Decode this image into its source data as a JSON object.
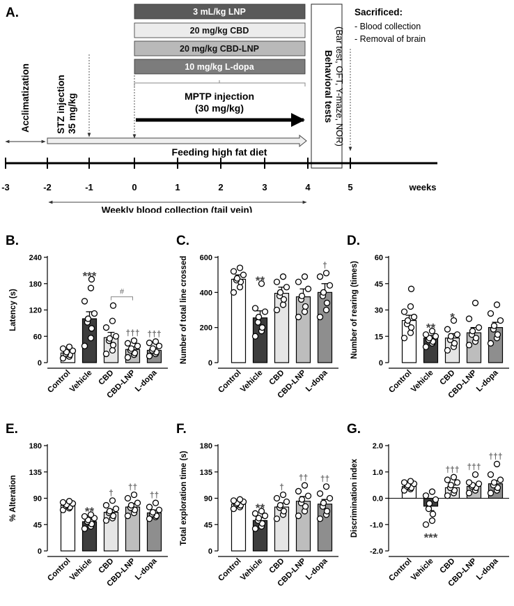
{
  "timeline": {
    "panel_label": "A.",
    "treatments": [
      "3 mL/kg LNP",
      "20 mg/kg CBD",
      "20 mg/kg CBD-LNP",
      "10 mg/kg L-dopa"
    ],
    "treatment_colors": [
      "#5a5a5a",
      "#ececec",
      "#b9b9b9",
      "#7c7c7c"
    ],
    "acclimatization": "Acclimatization",
    "stz_line1": "STZ injection",
    "stz_line2": "35 mg/kg",
    "mptp_line1": "MPTP injection",
    "mptp_line2": "(30 mg/kg)",
    "feeding": "Feeding high fat diet",
    "behavioral_line1": "Behavioral tests",
    "behavioral_line2": "(Bar test, OFT, Y-maze, NOR)",
    "sacrificed_title": "Sacrificed:",
    "sacrificed_items": [
      "- Blood collection",
      "- Removal of brain"
    ],
    "ticks": [
      "-3",
      "-2",
      "-1",
      "0",
      "1",
      "2",
      "3",
      "4",
      "5"
    ],
    "weeks_label": "weeks",
    "blood_collection": "Weekly blood collection (tail vein)"
  },
  "chart_data": [
    {
      "panel": "B.",
      "type": "bar",
      "ylabel": "Latency (s)",
      "categories": [
        "Control",
        "Vehicle",
        "CBD",
        "CBD-LNP",
        "L-dopa"
      ],
      "values": [
        22,
        100,
        57,
        30,
        28
      ],
      "sem": [
        5,
        16,
        12,
        6,
        5
      ],
      "ylim": [
        0,
        240
      ],
      "yticks": [
        0,
        60,
        120,
        180,
        240
      ],
      "points": [
        [
          10,
          14,
          18,
          20,
          24,
          27,
          32,
          36
        ],
        [
          38,
          56,
          78,
          92,
          100,
          112,
          140,
          170,
          190
        ],
        [
          20,
          28,
          40,
          50,
          55,
          60,
          80,
          95,
          130
        ],
        [
          12,
          18,
          22,
          28,
          32,
          38,
          44,
          50
        ],
        [
          15,
          20,
          24,
          28,
          32,
          38,
          45,
          48
        ]
      ],
      "bar_colors": [
        "#ffffff",
        "#3d3d3d",
        "#e5e5e5",
        "#bdbdbd",
        "#8e8e8e"
      ],
      "marks": [
        "",
        "***",
        "",
        "†††",
        "†††"
      ],
      "bracket": {
        "from": 2,
        "to": 3,
        "label": "#",
        "y": 150
      }
    },
    {
      "panel": "C.",
      "type": "bar",
      "ylabel": "Number of total line crossed",
      "categories": [
        "Control",
        "Vehicle",
        "CBD",
        "CBD-LNP",
        "L-dopa"
      ],
      "values": [
        475,
        255,
        395,
        375,
        400
      ],
      "sem": [
        25,
        40,
        35,
        45,
        50
      ],
      "ylim": [
        0,
        600
      ],
      "yticks": [
        0,
        200,
        400,
        600
      ],
      "points": [
        [
          400,
          430,
          460,
          470,
          480,
          500,
          520,
          540
        ],
        [
          150,
          180,
          200,
          230,
          260,
          290,
          310,
          450
        ],
        [
          300,
          330,
          360,
          380,
          400,
          430,
          460,
          490
        ],
        [
          260,
          290,
          320,
          360,
          380,
          420,
          460,
          490
        ],
        [
          260,
          300,
          340,
          380,
          400,
          440,
          490,
          510
        ]
      ],
      "bar_colors": [
        "#ffffff",
        "#3d3d3d",
        "#e5e5e5",
        "#bdbdbd",
        "#8e8e8e"
      ],
      "marks": [
        "",
        "**",
        "",
        "",
        "†"
      ]
    },
    {
      "panel": "D.",
      "type": "bar",
      "ylabel": "Number of rearing (times)",
      "categories": [
        "Control",
        "Vehicle",
        "CBD",
        "CBD-LNP",
        "L-dopa"
      ],
      "values": [
        24,
        14,
        14,
        17,
        20
      ],
      "sem": [
        3,
        1.5,
        2.5,
        3,
        3
      ],
      "ylim": [
        0,
        60
      ],
      "yticks": [
        0,
        15,
        30,
        45,
        60
      ],
      "points": [
        [
          14,
          17,
          20,
          22,
          24,
          26,
          29,
          32,
          42
        ],
        [
          9,
          11,
          12,
          13,
          14,
          15,
          16,
          18
        ],
        [
          7,
          9,
          11,
          13,
          15,
          16,
          19,
          24
        ],
        [
          10,
          12,
          14,
          16,
          18,
          20,
          25,
          34
        ],
        [
          11,
          14,
          16,
          19,
          21,
          24,
          28,
          33
        ]
      ],
      "bar_colors": [
        "#ffffff",
        "#3d3d3d",
        "#e5e5e5",
        "#bdbdbd",
        "#8e8e8e"
      ],
      "marks": [
        "",
        "**",
        "*",
        "",
        ""
      ]
    },
    {
      "panel": "E.",
      "type": "bar",
      "ylabel": "% Alteration",
      "categories": [
        "Control",
        "Vehicle",
        "CBD",
        "CBD-LNP",
        "L-dopa"
      ],
      "values": [
        78,
        50,
        66,
        75,
        65
      ],
      "sem": [
        3,
        4,
        5,
        6,
        5
      ],
      "ylim": [
        0,
        180
      ],
      "yticks": [
        0,
        45,
        90,
        135,
        180
      ],
      "points": [
        [
          70,
          73,
          75,
          77,
          79,
          81,
          83,
          85
        ],
        [
          38,
          42,
          46,
          50,
          53,
          56,
          59,
          62
        ],
        [
          52,
          56,
          60,
          65,
          68,
          72,
          78,
          86
        ],
        [
          60,
          65,
          70,
          74,
          78,
          82,
          90,
          96
        ],
        [
          55,
          58,
          60,
          63,
          66,
          70,
          75,
          82
        ]
      ],
      "bar_colors": [
        "#ffffff",
        "#3d3d3d",
        "#e5e5e5",
        "#bdbdbd",
        "#8e8e8e"
      ],
      "marks": [
        "",
        "**",
        "†",
        "††",
        "††"
      ]
    },
    {
      "panel": "F.",
      "type": "bar",
      "ylabel": "Total exploration time (s)",
      "categories": [
        "Control",
        "Vehicle",
        "CBD",
        "CBD-LNP",
        "L-dopa"
      ],
      "values": [
        80,
        52,
        75,
        85,
        80
      ],
      "sem": [
        3,
        5,
        7,
        8,
        8
      ],
      "ylim": [
        0,
        180
      ],
      "yticks": [
        0,
        45,
        90,
        135,
        180
      ],
      "points": [
        [
          72,
          75,
          78,
          80,
          82,
          84,
          86,
          88
        ],
        [
          38,
          42,
          47,
          52,
          56,
          60,
          64,
          68
        ],
        [
          55,
          62,
          68,
          74,
          78,
          84,
          90,
          96
        ],
        [
          60,
          68,
          76,
          82,
          88,
          94,
          102,
          112
        ],
        [
          55,
          62,
          68,
          76,
          82,
          90,
          98,
          110
        ]
      ],
      "bar_colors": [
        "#ffffff",
        "#3d3d3d",
        "#e5e5e5",
        "#bdbdbd",
        "#8e8e8e"
      ],
      "marks": [
        "",
        "**",
        "†",
        "††",
        "††"
      ]
    },
    {
      "panel": "G.",
      "type": "bar",
      "ylabel": "Discrimination index",
      "categories": [
        "Control",
        "Vehicle",
        "CBD",
        "CBD-LNP",
        "L-dopa"
      ],
      "values": [
        0.45,
        -0.3,
        0.4,
        0.45,
        0.55
      ],
      "sem": [
        0.06,
        0.17,
        0.1,
        0.09,
        0.12
      ],
      "ylim": [
        -2.0,
        2.0
      ],
      "yticks": [
        -2.0,
        -1.0,
        0.0,
        1.0,
        2.0
      ],
      "points": [
        [
          0.3,
          0.35,
          0.4,
          0.45,
          0.5,
          0.55,
          0.6,
          0.65
        ],
        [
          -1.0,
          -0.85,
          -0.6,
          -0.4,
          -0.2,
          -0.05,
          0.1,
          0.25
        ],
        [
          0.1,
          0.2,
          0.3,
          0.4,
          0.5,
          0.6,
          0.7,
          0.8
        ],
        [
          0.2,
          0.3,
          0.4,
          0.45,
          0.5,
          0.55,
          0.6,
          0.9
        ],
        [
          0.2,
          0.3,
          0.4,
          0.5,
          0.6,
          0.7,
          0.9,
          1.3
        ]
      ],
      "bar_colors": [
        "#ffffff",
        "#3d3d3d",
        "#e5e5e5",
        "#bdbdbd",
        "#8e8e8e"
      ],
      "marks": [
        "",
        "***",
        "†††",
        "†††",
        "†††"
      ]
    }
  ]
}
